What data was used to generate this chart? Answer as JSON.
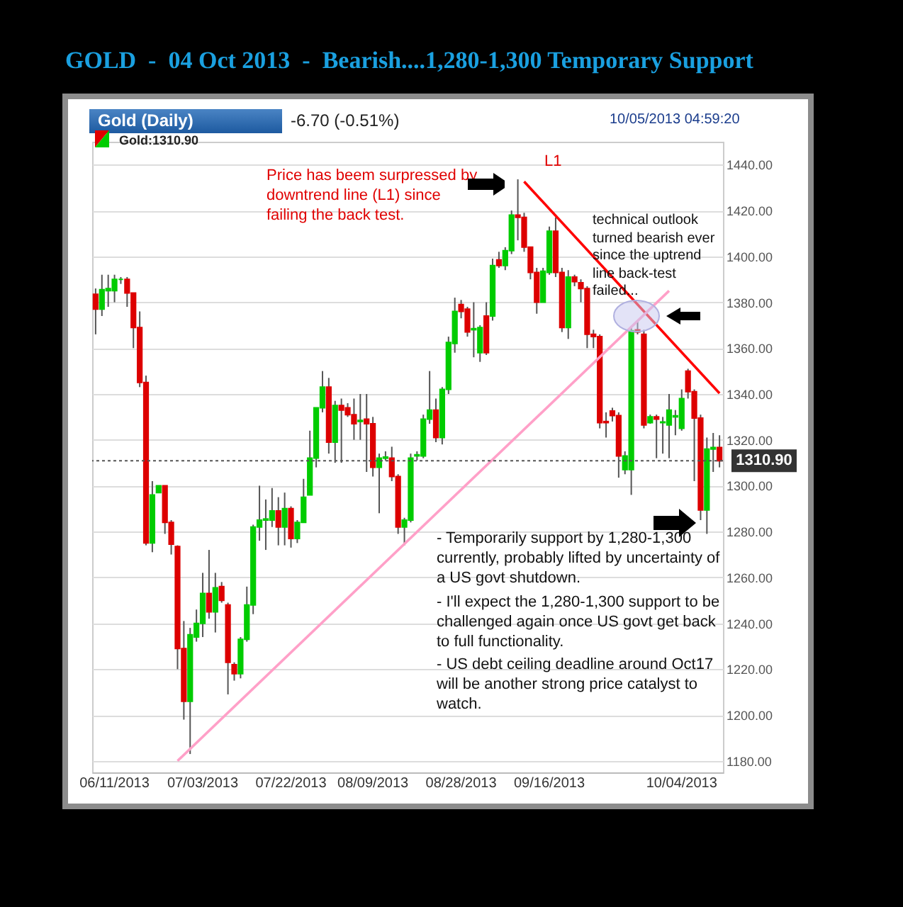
{
  "chart_data": {
    "type": "candlestick",
    "title": "GOLD  -  04 Oct 2013  -  Bearish....1,280-1,300 Temporary Support",
    "subtitle": "Gold (Daily)",
    "annotations": [
      "-6.70 (-0.51%)",
      "10/05/2013 04:59:20",
      "Gold:1310.90",
      "Price has beem surpressed by downtrend line (L1) since failing the back test.",
      "L1",
      "technical outlook turned bearish ever since the uptrend line back-test failed...",
      "- Temporarily support by 1,280-1,300 currently, probably lifted by uncertainty of a US govt shutdown.",
      "- I'll expect the 1,280-1,300 support to be challenged again once US govt get back to full functionality.",
      "- US debt ceiling deadline around Oct17 will be another strong price catalyst to watch."
    ],
    "categories": [
      null,
      null,
      null,
      "06/11/2013",
      null,
      null,
      null,
      null,
      null,
      null,
      null,
      null,
      null,
      null,
      null,
      null,
      null,
      "07/03/2013",
      null,
      null,
      null,
      null,
      null,
      null,
      null,
      null,
      null,
      null,
      null,
      null,
      null,
      "07/22/2013",
      null,
      null,
      null,
      null,
      null,
      null,
      null,
      null,
      null,
      null,
      null,
      null,
      "08/09/2013",
      null,
      null,
      null,
      null,
      null,
      null,
      null,
      null,
      null,
      null,
      null,
      null,
      null,
      "08/28/2013",
      null,
      null,
      null,
      null,
      null,
      null,
      null,
      null,
      null,
      null,
      null,
      null,
      null,
      "09/16/2013",
      null,
      null,
      null,
      null,
      null,
      null,
      null,
      null,
      null,
      null,
      null,
      null,
      null,
      null,
      null,
      null,
      null,
      null,
      null,
      null,
      "10/04/2013",
      null,
      null,
      null,
      null,
      null,
      null
    ],
    "ohlc": [
      [
        1383.5,
        1386,
        1366,
        1377
      ],
      [
        1377,
        1392,
        1374,
        1385.5
      ],
      [
        1385,
        1392,
        1378,
        1386
      ],
      [
        1385,
        1392,
        1380,
        1390
      ],
      [
        1390,
        1391,
        1388,
        1390
      ],
      [
        1390,
        1391,
        1378,
        1384
      ],
      [
        1384,
        1384,
        1360,
        1369
      ],
      [
        1369,
        1376,
        1343,
        1345
      ],
      [
        1345,
        1348,
        1274,
        1275
      ],
      [
        1275,
        1302,
        1271,
        1296
      ],
      [
        1297,
        1300,
        1297,
        1300
      ],
      [
        1300,
        1300,
        1279,
        1284
      ],
      [
        1284,
        1285,
        1270,
        1274.5
      ],
      [
        1273.5,
        1274,
        1220,
        1229
      ],
      [
        1229,
        1241,
        1198,
        1206
      ],
      [
        1206,
        1238,
        1183,
        1235
      ],
      [
        1234,
        1246,
        1232,
        1240
      ],
      [
        1240,
        1262,
        1234,
        1253
      ],
      [
        1253,
        1272,
        1242,
        1245
      ],
      [
        1245,
        1262,
        1236,
        1255.5
      ],
      [
        1256,
        1258,
        1249,
        1250
      ],
      [
        1248,
        1249,
        1209,
        1223
      ],
      [
        1222,
        1223,
        1215,
        1218
      ],
      [
        1218,
        1234,
        1216,
        1233
      ],
      [
        1233,
        1256,
        1232,
        1248
      ],
      [
        1248,
        1283,
        1244,
        1282
      ],
      [
        1282,
        1300,
        1276,
        1285
      ],
      [
        1285,
        1294,
        1272,
        1285.5
      ],
      [
        1285,
        1299,
        1282,
        1289
      ],
      [
        1289,
        1295,
        1274,
        1282
      ],
      [
        1282,
        1297,
        1274,
        1290
      ],
      [
        1290,
        1291,
        1273,
        1277
      ],
      [
        1277,
        1285,
        1275,
        1284
      ],
      [
        1284,
        1303,
        1284,
        1295
      ],
      [
        1296,
        1324,
        1296,
        1312
      ],
      [
        1312,
        1334,
        1308,
        1334
      ],
      [
        1334,
        1350,
        1332,
        1343
      ],
      [
        1343,
        1347,
        1314,
        1319
      ],
      [
        1319,
        1337,
        1310,
        1335
      ],
      [
        1335,
        1338,
        1310,
        1333
      ],
      [
        1334,
        1336,
        1330,
        1331
      ],
      [
        1331,
        1338,
        1320,
        1327
      ],
      [
        1328,
        1340,
        1320,
        1328.5
      ],
      [
        1329,
        1340,
        1306,
        1327
      ],
      [
        1327,
        1330,
        1304,
        1308
      ],
      [
        1308,
        1314,
        1288,
        1312
      ],
      [
        1312,
        1315,
        1311,
        1312.5
      ],
      [
        1312,
        1317,
        1302,
        1304
      ],
      [
        1304,
        1305,
        1279,
        1282
      ],
      [
        1282,
        1286,
        1274,
        1285
      ],
      [
        1285,
        1314,
        1284,
        1312
      ],
      [
        1313,
        1315,
        1311,
        1313.5
      ],
      [
        1313,
        1331,
        1312,
        1329
      ],
      [
        1329,
        1350,
        1327,
        1333
      ],
      [
        1333,
        1338,
        1319,
        1321
      ],
      [
        1321,
        1343,
        1318,
        1342
      ],
      [
        1342,
        1365,
        1340,
        1362.5
      ],
      [
        1362,
        1382,
        1358,
        1376
      ],
      [
        1379,
        1381,
        1373,
        1376
      ],
      [
        1377,
        1378,
        1365,
        1367
      ],
      [
        1368,
        1380,
        1356,
        1368.5
      ],
      [
        1358,
        1370,
        1354,
        1369
      ],
      [
        1374,
        1380,
        1357,
        1358
      ],
      [
        1374,
        1399,
        1372,
        1396
      ],
      [
        1398.5,
        1402,
        1395,
        1396
      ],
      [
        1396,
        1404,
        1394,
        1402.5
      ],
      [
        1402.5,
        1420,
        1401,
        1418
      ],
      [
        1418,
        1433.6,
        1407,
        1417
      ],
      [
        1417,
        1419,
        1402,
        1404
      ],
      [
        1404,
        1404,
        1390,
        1393
      ],
      [
        1393,
        1395,
        1375,
        1380
      ],
      [
        1380,
        1395,
        1380,
        1393.5
      ],
      [
        1393,
        1413,
        1392,
        1411
      ],
      [
        1411,
        1417,
        1391,
        1393
      ],
      [
        1393,
        1395,
        1367,
        1369
      ],
      [
        1369,
        1394,
        1364,
        1391
      ],
      [
        1391,
        1392,
        1387,
        1389
      ],
      [
        1388.5,
        1390,
        1380,
        1386
      ],
      [
        1386,
        1387,
        1360,
        1366
      ],
      [
        1366,
        1368,
        1360,
        1365
      ],
      [
        1365,
        1366,
        1325,
        1327.5
      ],
      [
        1328,
        1332,
        1321,
        1327.5
      ],
      [
        1332.6,
        1334,
        1328,
        1330.6
      ],
      [
        1330.6,
        1332,
        1303.5,
        1313
      ],
      [
        1307,
        1315,
        1305,
        1313
      ],
      [
        1307,
        1369,
        1296,
        1367.6
      ],
      [
        1368,
        1372,
        1366,
        1367
      ],
      [
        1366,
        1368,
        1325,
        1326.5
      ],
      [
        1327.5,
        1331,
        1327,
        1330
      ],
      [
        1330,
        1331,
        1312,
        1329
      ],
      [
        1327.5,
        1330,
        1314,
        1327.8
      ],
      [
        1326.5,
        1340,
        1312,
        1333
      ],
      [
        1330,
        1333,
        1322,
        1330.5
      ],
      [
        1325,
        1342,
        1324,
        1338
      ],
      [
        1350,
        1351,
        1338,
        1341
      ],
      [
        1341,
        1342,
        1302,
        1329.5
      ],
      [
        1329.5,
        1331,
        1285,
        1289.4
      ],
      [
        1289.4,
        1321,
        1279,
        1316
      ],
      [
        1316,
        1323,
        1306,
        1316.7
      ],
      [
        1316.7,
        1322,
        1308,
        1310.9
      ]
    ],
    "colors": [
      "#dd0000",
      "#00cc00",
      "#00cc00",
      "#00cc00",
      "#00cc00",
      "#dd0000",
      "#dd0000",
      "#dd0000",
      "#dd0000",
      "#00cc00",
      "#00cc00",
      "#dd0000",
      "#dd0000",
      "#dd0000",
      "#dd0000",
      "#00cc00",
      "#00cc00",
      "#00cc00",
      "#dd0000",
      "#00cc00",
      "#dd0000",
      "#dd0000",
      "#dd0000",
      "#00cc00",
      "#00cc00",
      "#00cc00",
      "#00cc00",
      "#00cc00",
      "#00cc00",
      "#dd0000",
      "#00cc00",
      "#dd0000",
      "#00cc00",
      "#00cc00",
      "#00cc00",
      "#00cc00",
      "#00cc00",
      "#dd0000",
      "#00cc00",
      "#dd0000",
      "#dd0000",
      "#dd0000",
      "#00cc00",
      "#dd0000",
      "#dd0000",
      "#00cc00",
      "#00cc00",
      "#dd0000",
      "#dd0000",
      "#00cc00",
      "#00cc00",
      "#00cc00",
      "#00cc00",
      "#00cc00",
      "#dd0000",
      "#00cc00",
      "#00cc00",
      "#00cc00",
      "#dd0000",
      "#dd0000",
      "#00cc00",
      "#00cc00",
      "#dd0000",
      "#00cc00",
      "#dd0000",
      "#00cc00",
      "#00cc00",
      "#dd0000",
      "#dd0000",
      "#dd0000",
      "#dd0000",
      "#00cc00",
      "#00cc00",
      "#dd0000",
      "#dd0000",
      "#00cc00",
      "#dd0000",
      "#dd0000",
      "#dd0000",
      "#dd0000",
      "#dd0000",
      "#dd0000",
      "#dd0000",
      "#dd0000",
      "#00cc00",
      "#00cc00",
      "#dd0000",
      "#dd0000",
      "#00cc00",
      "#dd0000",
      "#00cc00",
      "#00cc00",
      "#00cc00",
      "#00cc00",
      "#dd0000",
      "#dd0000",
      "#dd0000",
      "#00cc00",
      "#00cc00",
      "#dd0000"
    ],
    "series": [
      {
        "type": "line",
        "color": "#ff0000",
        "values": [
          null,
          null,
          null,
          null,
          null,
          null,
          null,
          null,
          null,
          null,
          null,
          null,
          null,
          null,
          null,
          null,
          null,
          null,
          null,
          null,
          null,
          null,
          null,
          null,
          null,
          null,
          null,
          null,
          null,
          null,
          null,
          null,
          null,
          null,
          null,
          null,
          null,
          null,
          null,
          null,
          null,
          null,
          null,
          null,
          null,
          null,
          null,
          null,
          null,
          null,
          null,
          null,
          null,
          null,
          null,
          null,
          null,
          null,
          null,
          null,
          null,
          null,
          null,
          null,
          null,
          null,
          null,
          null,
          1432.6,
          null,
          null,
          null,
          null,
          null,
          null,
          null,
          null,
          null,
          null,
          null,
          null,
          null,
          null,
          null,
          null,
          null,
          null,
          null,
          null,
          null,
          null,
          null,
          null,
          null,
          null,
          null,
          null,
          null,
          null,
          1340.3
        ]
      },
      {
        "type": "line",
        "color": "#ffa0c8",
        "values": [
          null,
          null,
          null,
          null,
          null,
          null,
          null,
          null,
          null,
          null,
          null,
          null,
          null,
          1180,
          null,
          null,
          null,
          null,
          null,
          null,
          null,
          null,
          null,
          null,
          null,
          null,
          null,
          null,
          null,
          null,
          null,
          null,
          null,
          null,
          null,
          null,
          null,
          null,
          null,
          null,
          null,
          null,
          null,
          null,
          null,
          null,
          null,
          null,
          null,
          null,
          null,
          null,
          null,
          null,
          null,
          null,
          null,
          null,
          null,
          null,
          null,
          null,
          null,
          null,
          null,
          null,
          null,
          null,
          null,
          null,
          null,
          null,
          null,
          null,
          null,
          null,
          null,
          null,
          null,
          null,
          null,
          null,
          null,
          null,
          null,
          null,
          null,
          null,
          null,
          null,
          null,
          1385,
          null,
          null,
          null,
          null,
          null,
          null,
          null,
          null
        ]
      }
    ],
    "ylim": [
      1175,
      1450
    ],
    "yticks": [
      {
        "value": 1180,
        "label": "1180.00"
      },
      {
        "value": 1200,
        "label": "1200.00"
      },
      {
        "value": 1220,
        "label": "1220.00"
      },
      {
        "value": 1240,
        "label": "1240.00"
      },
      {
        "value": 1260,
        "label": "1260.00"
      },
      {
        "value": 1280,
        "label": "1280.00"
      },
      {
        "value": 1300,
        "label": "1300.00"
      },
      {
        "value": 1320,
        "label": "1320.00"
      },
      {
        "value": 1340,
        "label": "1340.00"
      },
      {
        "value": 1360,
        "label": "1360.00"
      },
      {
        "value": 1380,
        "label": "1380.00"
      },
      {
        "value": 1400,
        "label": "1400.00"
      },
      {
        "value": 1420,
        "label": "1420.00"
      },
      {
        "value": 1440,
        "label": "1440.00"
      }
    ],
    "ref_lines": [
      {
        "axis": "y",
        "value": 1310.9,
        "label": "1310.90",
        "color": "#555555",
        "line_style": "dotted"
      }
    ],
    "grid": "y"
  }
}
